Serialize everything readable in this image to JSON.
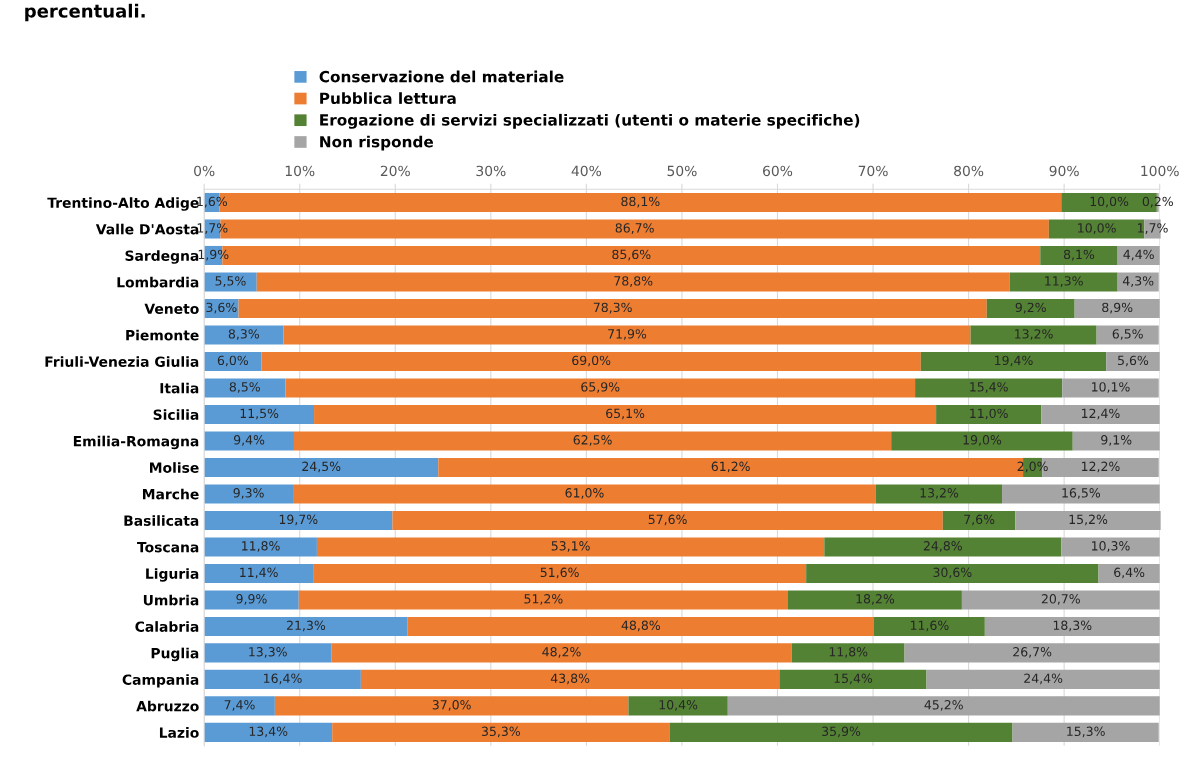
{
  "chart_data": {
    "type": "bar",
    "orientation": "horizontal",
    "stacked": true,
    "title": "percentuali.",
    "categories": [
      "Trentino-Alto Adige",
      "Valle D'Aosta",
      "Sardegna",
      "Lombardia",
      "Veneto",
      "Piemonte",
      "Friuli-Venezia Giulia",
      "Italia",
      "Sicilia",
      "Emilia-Romagna",
      "Molise",
      "Marche",
      "Basilicata",
      "Toscana",
      "Liguria",
      "Umbria",
      "Calabria",
      "Puglia",
      "Campania",
      "Abruzzo",
      "Lazio"
    ],
    "series": [
      {
        "name": "Conservazione del materiale",
        "color": "#5b9bd5",
        "values": [
          1.6,
          1.7,
          1.9,
          5.5,
          3.6,
          8.3,
          6.0,
          8.5,
          11.5,
          9.4,
          24.5,
          9.3,
          19.7,
          11.8,
          11.4,
          9.9,
          21.3,
          13.3,
          16.4,
          7.4,
          13.4
        ],
        "value_labels": [
          "1,6%",
          "1,7%",
          "1,9%",
          "5,5%",
          "3,6%",
          "8,3%",
          "6,0%",
          "8,5%",
          "11,5%",
          "9,4%",
          "24,5%",
          "9,3%",
          "19,7%",
          "11,8%",
          "11,4%",
          "9,9%",
          "21,3%",
          "13,3%",
          "16,4%",
          "7,4%",
          "13,4%"
        ]
      },
      {
        "name": "Pubblica lettura",
        "color": "#ed7d31",
        "values": [
          88.1,
          86.7,
          85.6,
          78.8,
          78.3,
          71.9,
          69.0,
          65.9,
          65.1,
          62.5,
          61.2,
          61.0,
          57.6,
          53.1,
          51.6,
          51.2,
          48.8,
          48.2,
          43.8,
          37.0,
          35.3
        ],
        "value_labels": [
          "88,1%",
          "86,7%",
          "85,6%",
          "78,8%",
          "78,3%",
          "71,9%",
          "69,0%",
          "65,9%",
          "65,1%",
          "62,5%",
          "61,2%",
          "61,0%",
          "57,6%",
          "53,1%",
          "51,6%",
          "51,2%",
          "48,8%",
          "48,2%",
          "43,8%",
          "37,0%",
          "35,3%"
        ]
      },
      {
        "name": "Erogazione di servizi specializzati (utenti o materie specifiche)",
        "color": "#548235",
        "values": [
          10.0,
          10.0,
          8.1,
          11.3,
          9.2,
          13.2,
          19.4,
          15.4,
          11.0,
          19.0,
          2.0,
          13.2,
          7.6,
          24.8,
          30.6,
          18.2,
          11.6,
          11.8,
          15.4,
          10.4,
          35.9
        ],
        "value_labels": [
          "10,0%",
          "10,0%",
          "8,1%",
          "11,3%",
          "9,2%",
          "13,2%",
          "19,4%",
          "15,4%",
          "11,0%",
          "19,0%",
          "2,0%",
          "13,2%",
          "7,6%",
          "24,8%",
          "30,6%",
          "18,2%",
          "11,6%",
          "11,8%",
          "15,4%",
          "10,4%",
          "35,9%"
        ]
      },
      {
        "name": "Non risponde",
        "color": "#a5a5a5",
        "values": [
          0.2,
          1.7,
          4.4,
          4.3,
          8.9,
          6.5,
          5.6,
          10.1,
          12.4,
          9.1,
          12.2,
          16.5,
          15.2,
          10.3,
          6.4,
          20.7,
          18.3,
          26.7,
          24.4,
          45.2,
          15.3
        ],
        "value_labels": [
          "0,2%",
          "1,7%",
          "4,4%",
          "4,3%",
          "8,9%",
          "6,5%",
          "5,6%",
          "10,1%",
          "12,4%",
          "9,1%",
          "12,2%",
          "16,5%",
          "15,2%",
          "10,3%",
          "6,4%",
          "20,7%",
          "18,3%",
          "26,7%",
          "24,4%",
          "45,2%",
          "15,3%"
        ]
      }
    ],
    "xlim": [
      0,
      100
    ],
    "xticks": [
      {
        "value": 0,
        "label": "0%"
      },
      {
        "value": 10,
        "label": "10%"
      },
      {
        "value": 20,
        "label": "20%"
      },
      {
        "value": 30,
        "label": "30%"
      },
      {
        "value": 40,
        "label": "40%"
      },
      {
        "value": 50,
        "label": "50%"
      },
      {
        "value": 60,
        "label": "60%"
      },
      {
        "value": 70,
        "label": "70%"
      },
      {
        "value": 80,
        "label": "80%"
      },
      {
        "value": 90,
        "label": "90%"
      },
      {
        "value": 100,
        "label": "100%"
      }
    ],
    "grid": "x",
    "legend": "top"
  }
}
